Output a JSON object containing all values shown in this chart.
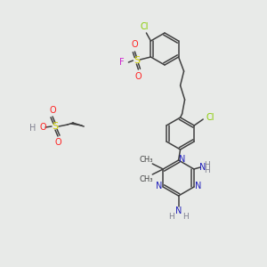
{
  "bg_color": "#e8eae8",
  "fig_size": [
    3.0,
    3.0
  ],
  "dpi": 100,
  "atom_colors": {
    "Cl": "#88cc00",
    "F": "#cc22cc",
    "S": "#cccc00",
    "O": "#ff2020",
    "N": "#2020bb",
    "H": "#808090",
    "C": "#404040"
  },
  "bond_color": "#404040",
  "bond_lw": 1.1
}
